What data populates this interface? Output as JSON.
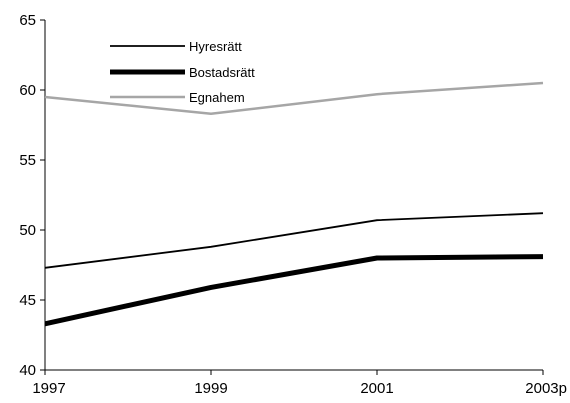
{
  "chart_data": {
    "type": "line",
    "title": "",
    "xlabel": "",
    "ylabel": "",
    "categories": [
      "1997",
      "1999",
      "2001",
      "2003p"
    ],
    "ylim": [
      40,
      65
    ],
    "yticks": [
      40,
      45,
      50,
      55,
      60,
      65
    ],
    "grid": false,
    "legend_position": "top-left",
    "series": [
      {
        "name": "Hyresrätt",
        "values": [
          47.3,
          48.8,
          50.7,
          51.2
        ],
        "color": "#000000",
        "style": "solid-thin"
      },
      {
        "name": "Bostadsrätt",
        "values": [
          43.3,
          45.9,
          48.0,
          48.1
        ],
        "color": "#000000",
        "style": "solid-thick"
      },
      {
        "name": "Egnahem",
        "values": [
          59.5,
          58.3,
          59.7,
          60.5
        ],
        "color": "#a6a6a6",
        "style": "solid-gray"
      }
    ]
  }
}
